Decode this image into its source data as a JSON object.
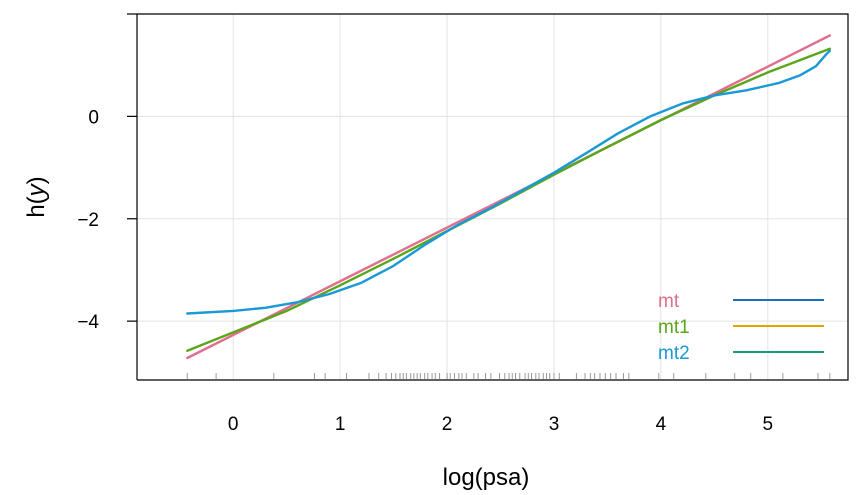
{
  "chart_data": {
    "type": "line",
    "xlabel": "log(psa)",
    "ylabel_fn": "h(",
    "ylabel_var": "y",
    "ylabel_close": ")",
    "xlim": [
      -0.9,
      5.75
    ],
    "ylim": [
      -5.15,
      2.0
    ],
    "x_ticks": [
      0,
      1,
      2,
      3,
      4,
      5
    ],
    "x_tick_labels": [
      "0",
      "1",
      "2",
      "3",
      "4",
      "5"
    ],
    "y_ticks": [
      0,
      -2,
      -4
    ],
    "y_tick_labels": [
      "0",
      "−2",
      "−4"
    ],
    "grid": true,
    "series": [
      {
        "name": "mt",
        "color": "#df6f8c",
        "x": [
          -0.43,
          5.58
        ],
        "y": [
          -4.72,
          1.58
        ]
      },
      {
        "name": "mt1",
        "color": "#5aa61a",
        "x": [
          -0.43,
          0.5,
          1.0,
          1.5,
          2.0,
          2.5,
          3.0,
          3.5,
          4.0,
          4.5,
          5.0,
          5.58
        ],
        "y": [
          -4.58,
          -3.8,
          -3.3,
          -2.78,
          -2.24,
          -1.7,
          -1.14,
          -0.6,
          -0.07,
          0.41,
          0.86,
          1.32
        ]
      },
      {
        "name": "mt2",
        "color": "#1a99d6",
        "x": [
          -0.43,
          0.0,
          0.3,
          0.6,
          0.9,
          1.2,
          1.5,
          1.8,
          2.1,
          2.4,
          2.7,
          3.0,
          3.3,
          3.6,
          3.9,
          4.2,
          4.5,
          4.8,
          5.1,
          5.3,
          5.45,
          5.55,
          5.58
        ],
        "y": [
          -3.85,
          -3.8,
          -3.74,
          -3.63,
          -3.47,
          -3.25,
          -2.92,
          -2.5,
          -2.12,
          -1.8,
          -1.45,
          -1.1,
          -0.72,
          -0.33,
          0.0,
          0.25,
          0.41,
          0.51,
          0.65,
          0.8,
          0.98,
          1.22,
          1.28
        ]
      }
    ],
    "rug_x": [
      -0.43,
      -0.16,
      0.38,
      0.76,
      0.86,
      1.06,
      1.27,
      1.36,
      1.43,
      1.48,
      1.52,
      1.56,
      1.59,
      1.62,
      1.66,
      1.69,
      1.72,
      1.75,
      1.79,
      1.82,
      1.86,
      1.89,
      1.93,
      2.0,
      2.03,
      2.07,
      2.11,
      2.14,
      2.18,
      2.25,
      2.29,
      2.36,
      2.41,
      2.49,
      2.54,
      2.58,
      2.61,
      2.64,
      2.68,
      2.73,
      2.76,
      2.79,
      2.83,
      2.86,
      2.9,
      2.93,
      2.96,
      3.0,
      3.05,
      3.21,
      3.29,
      3.34,
      3.38,
      3.43,
      3.48,
      3.53,
      3.58,
      3.65,
      3.7,
      3.98,
      4.12,
      4.42,
      4.69,
      4.84,
      5.14,
      5.47,
      5.58
    ],
    "legend": {
      "placement": "bottom-right",
      "labels": [
        "mt",
        "mt1",
        "mt2"
      ],
      "text_colors": [
        "#df6f8c",
        "#5aa61a",
        "#1a99d6"
      ],
      "line_colors": [
        "#1a6fbf",
        "#e1a400",
        "#1a9a80"
      ]
    }
  }
}
